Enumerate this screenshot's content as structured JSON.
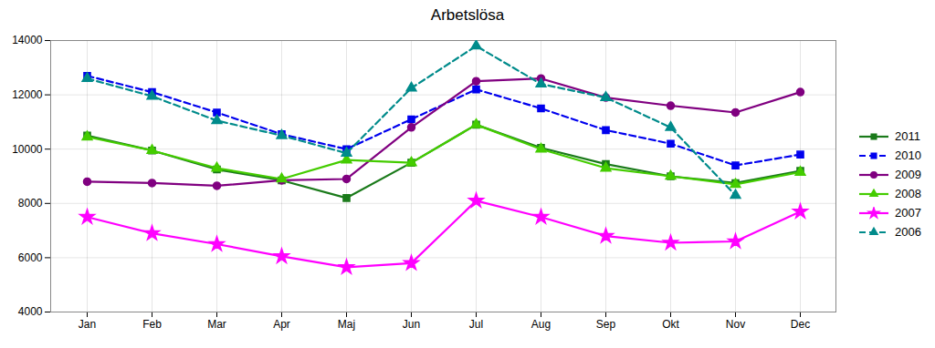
{
  "chart_data": {
    "type": "line",
    "title": "Arbetslösa",
    "categories": [
      "Jan",
      "Feb",
      "Mar",
      "Apr",
      "Maj",
      "Jun",
      "Jul",
      "Aug",
      "Sep",
      "Okt",
      "Nov",
      "Dec"
    ],
    "series": [
      {
        "name": "2011",
        "color": "#1a7a1a",
        "marker": "square",
        "line_style": "solid",
        "values": [
          10500,
          9950,
          9250,
          8850,
          8200,
          9500,
          10900,
          10050,
          9450,
          9000,
          8750,
          9200
        ]
      },
      {
        "name": "2010",
        "color": "#0000ee",
        "marker": "square",
        "line_style": "dashed",
        "values": [
          12700,
          12100,
          11350,
          10550,
          10000,
          11100,
          12200,
          11500,
          10700,
          10200,
          9400,
          9800
        ]
      },
      {
        "name": "2009",
        "color": "#800080",
        "marker": "circle",
        "line_style": "solid",
        "values": [
          8800,
          8750,
          8650,
          8850,
          8900,
          10800,
          12500,
          12600,
          11900,
          11600,
          11350,
          12100
        ]
      },
      {
        "name": "2008",
        "color": "#44cc00",
        "marker": "triangle",
        "line_style": "solid",
        "values": [
          10450,
          9950,
          9300,
          8900,
          9600,
          9500,
          10900,
          10000,
          9300,
          9000,
          8700,
          9150
        ]
      },
      {
        "name": "2007",
        "color": "#ff00ff",
        "marker": "star",
        "line_style": "solid",
        "values": [
          7500,
          6900,
          6500,
          6050,
          5650,
          5800,
          8100,
          7500,
          6800,
          6550,
          6600,
          7700
        ]
      },
      {
        "name": "2006",
        "color": "#008b8b",
        "marker": "triangle",
        "line_style": "dashed",
        "values": [
          12600,
          11950,
          11050,
          10500,
          9850,
          12250,
          13800,
          12400,
          11900,
          10800,
          8300,
          null
        ]
      }
    ],
    "ylim": [
      4000,
      14000
    ],
    "yticks": [
      4000,
      6000,
      8000,
      10000,
      12000,
      14000
    ],
    "grid": true,
    "legend": "right"
  }
}
